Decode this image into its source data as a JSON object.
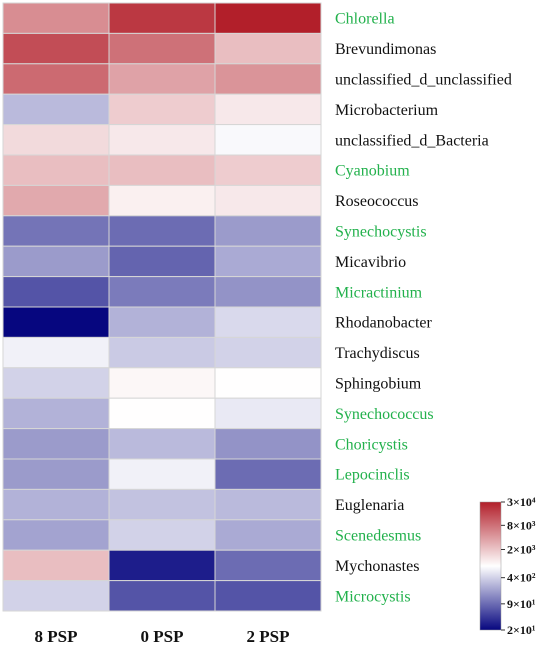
{
  "chart_data": {
    "type": "heatmap",
    "columns": [
      "8 PSP",
      "0 PSP",
      "2 PSP"
    ],
    "rows": [
      {
        "label": "Chlorella",
        "highlight": true,
        "values": [
          3.7,
          4.3,
          4.5
        ]
      },
      {
        "label": "Brevundimonas",
        "highlight": false,
        "values": [
          4.15,
          3.9,
          3.35
        ]
      },
      {
        "label": "unclassified_d_unclassified",
        "highlight": false,
        "values": [
          3.95,
          3.55,
          3.65
        ]
      },
      {
        "label": "Microbacterium",
        "highlight": false,
        "values": [
          2.45,
          3.25,
          3.05
        ]
      },
      {
        "label": "unclassified_d_Bacteria",
        "highlight": false,
        "values": [
          3.15,
          3.05,
          2.85
        ]
      },
      {
        "label": "Cyanobium",
        "highlight": true,
        "values": [
          3.35,
          3.35,
          3.25
        ]
      },
      {
        "label": "Roseococcus",
        "highlight": false,
        "values": [
          3.5,
          3.0,
          3.05
        ]
      },
      {
        "label": "Synechocystis",
        "highlight": true,
        "values": [
          2.0,
          1.95,
          2.25
        ]
      },
      {
        "label": "Micavibrio",
        "highlight": false,
        "values": [
          2.25,
          1.9,
          2.35
        ]
      },
      {
        "label": "Micractinium",
        "highlight": true,
        "values": [
          1.8,
          2.05,
          2.2
        ]
      },
      {
        "label": "Rhodanobacter",
        "highlight": false,
        "values": [
          1.3,
          2.4,
          2.65
        ]
      },
      {
        "label": "Trachydiscus",
        "highlight": false,
        "values": [
          2.8,
          2.55,
          2.6
        ]
      },
      {
        "label": "Sphingobium",
        "highlight": false,
        "values": [
          2.6,
          2.95,
          2.9
        ]
      },
      {
        "label": "Synechococcus",
        "highlight": true,
        "values": [
          2.4,
          2.9,
          2.75
        ]
      },
      {
        "label": "Choricystis",
        "highlight": true,
        "values": [
          2.25,
          2.45,
          2.2
        ]
      },
      {
        "label": "Lepocinclis",
        "highlight": true,
        "values": [
          2.25,
          2.8,
          1.95
        ]
      },
      {
        "label": "Euglenaria",
        "highlight": false,
        "values": [
          2.4,
          2.5,
          2.45
        ]
      },
      {
        "label": "Scenedesmus",
        "highlight": true,
        "values": [
          2.3,
          2.6,
          2.35
        ]
      },
      {
        "label": "Mychonastes",
        "highlight": false,
        "values": [
          3.35,
          1.45,
          1.95
        ]
      },
      {
        "label": "Microcystis",
        "highlight": true,
        "values": [
          2.6,
          1.8,
          1.8
        ]
      }
    ],
    "legend": {
      "type": "color-scale",
      "ticks": [
        {
          "label": "3×10⁴",
          "value": 4.48
        },
        {
          "label": "8×10³",
          "value": 3.9
        },
        {
          "label": "2×10³",
          "value": 3.3
        },
        {
          "label": "4×10²",
          "value": 2.6
        },
        {
          "label": "9×10¹",
          "value": 1.95
        },
        {
          "label": "2×10¹",
          "value": 1.3
        }
      ],
      "placement": "right"
    },
    "scale": "log",
    "range": [
      1.3,
      4.48
    ]
  },
  "colors": {
    "high": "#b21f2a",
    "mid": "#ffffff",
    "low": "#06067f",
    "highlight_text": "#22b14c",
    "text": "#111111"
  }
}
